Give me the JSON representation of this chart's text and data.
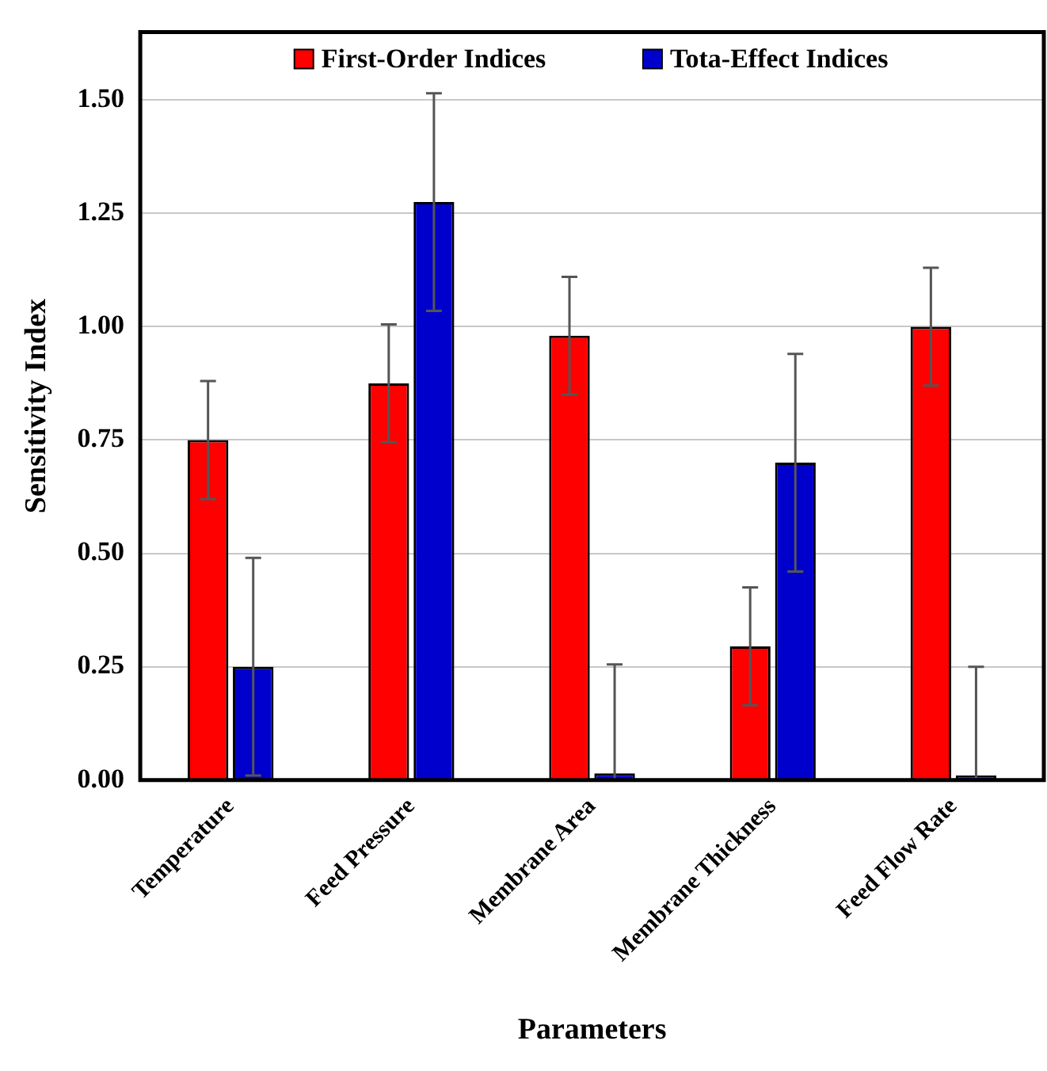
{
  "chart_data": {
    "type": "bar",
    "xlabel": "Parameters",
    "ylabel": "Sensitivity Index",
    "categories": [
      "Temperature",
      "Feed Pressure",
      "Membrane Area",
      "Membrane Thickness",
      "Feed Flow Rate"
    ],
    "series": [
      {
        "name": "First-Order Indices",
        "color": "#ff0000",
        "values": [
          0.75,
          0.875,
          0.98,
          0.295,
          1.0
        ],
        "errors": [
          0.13,
          0.13,
          0.13,
          0.13,
          0.13
        ]
      },
      {
        "name": "Tota-Effect Indices",
        "color": "#0000cc",
        "values": [
          0.25,
          1.275,
          0.015,
          0.7,
          0.01
        ],
        "errors": [
          0.24,
          0.24,
          [
            0,
            0.255
          ],
          0.24,
          [
            0,
            0.25
          ]
        ]
      }
    ],
    "ylim": [
      0,
      1.65
    ],
    "yticks": [
      {
        "value": 0,
        "label": "0.00"
      },
      {
        "value": 0.25,
        "label": "0.25"
      },
      {
        "value": 0.5,
        "label": "0.50"
      },
      {
        "value": 0.75,
        "label": "0.75"
      },
      {
        "value": 1,
        "label": "1.00"
      },
      {
        "value": 1.25,
        "label": "1.25"
      },
      {
        "value": 1.5,
        "label": "1.50"
      }
    ],
    "grid": "y",
    "legend": "top"
  }
}
